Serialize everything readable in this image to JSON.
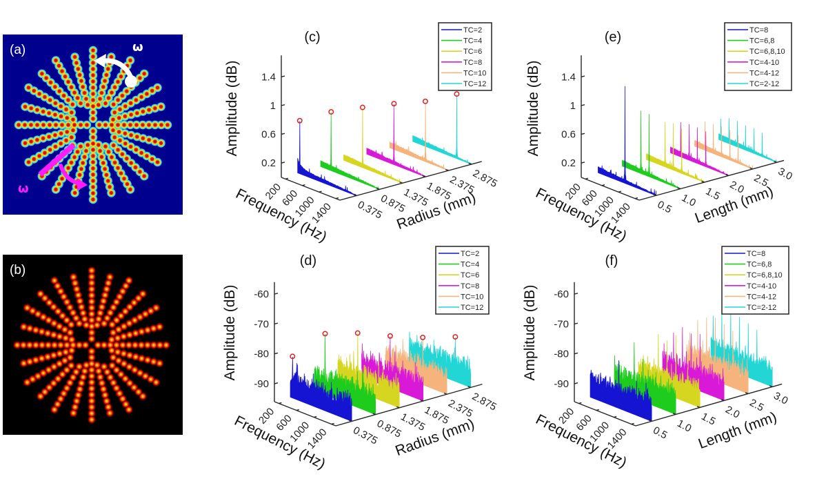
{
  "panel_a": {
    "label": "(a)",
    "omega_top": "ω",
    "omega_bottom": "ω",
    "colors": {
      "background": "#00008f",
      "arrow_top": "#ffffff",
      "arrow_bottom": "#ff1cff"
    }
  },
  "panel_b": {
    "label": "(b)",
    "colors": {
      "background": "#000000"
    }
  },
  "chart_data": [
    {
      "id": "c",
      "label": "(c)",
      "type": "area",
      "style": "3d-waterfall",
      "xlabel": "Frequency (Hz)",
      "ylabel": "Radius (mm)",
      "zlabel": "Amplitude (dB)",
      "xlim": [
        100,
        1500
      ],
      "xticks": [
        200,
        600,
        1000,
        1400
      ],
      "xticklabels": [
        "200",
        "600",
        "1000",
        "1400"
      ],
      "ylim": [
        0.02,
        3.1
      ],
      "yticks": [
        0.375,
        0.875,
        1.375,
        1.875,
        2.375,
        2.875
      ],
      "yticklabels": [
        "0.375",
        "0.875",
        "1.375",
        "1.875",
        "2.375",
        "2.875"
      ],
      "zlim": [
        0,
        1.7
      ],
      "zticks": [
        0.2,
        0.6,
        1,
        1.4
      ],
      "zticklabels": [
        "0.2",
        "0.6",
        "1",
        "1.4"
      ],
      "legend": "top-right",
      "peak_marker": "circle",
      "peak_marker_color": "#e02020",
      "noise_floor": [
        0,
        0.09
      ],
      "series": [
        {
          "name": "TC=2",
          "color": "#1414d2",
          "position": 0.375,
          "peaks": [
            {
              "frequency": 150,
              "amplitude": 0.73
            }
          ]
        },
        {
          "name": "TC=4",
          "color": "#1ecc1e",
          "position": 0.875,
          "peaks": [
            {
              "frequency": 350,
              "amplitude": 0.81
            }
          ]
        },
        {
          "name": "TC=6",
          "color": "#d6d620",
          "position": 1.375,
          "peaks": [
            {
              "frequency": 550,
              "amplitude": 0.83
            }
          ]
        },
        {
          "name": "TC=8",
          "color": "#d81ad8",
          "position": 1.875,
          "peaks": [
            {
              "frequency": 750,
              "amplitude": 0.84
            }
          ]
        },
        {
          "name": "TC=10",
          "color": "#f6b47c",
          "position": 2.375,
          "peaks": [
            {
              "frequency": 950,
              "amplitude": 0.83
            }
          ]
        },
        {
          "name": "TC=12",
          "color": "#22d6d6",
          "position": 2.875,
          "peaks": [
            {
              "frequency": 1150,
              "amplitude": 0.89
            }
          ]
        }
      ]
    },
    {
      "id": "d",
      "label": "(d)",
      "type": "area",
      "style": "3d-waterfall",
      "xlabel": "Frequency (Hz)",
      "ylabel": "Radius (mm)",
      "zlabel": "Amplitude (dB)",
      "xlim": [
        100,
        1500
      ],
      "xticks": [
        200,
        600,
        1000,
        1400
      ],
      "xticklabels": [
        "200",
        "600",
        "1000",
        "1400"
      ],
      "ylim": [
        0.04,
        3.12
      ],
      "yticks": [
        0.375,
        0.875,
        1.375,
        1.875,
        2.375,
        2.875
      ],
      "yticklabels": [
        "0.375",
        "0.875",
        "1.375",
        "1.875",
        "2.375",
        "2.875"
      ],
      "zlim": [
        -96,
        -56
      ],
      "zticks": [
        -90,
        -80,
        -70,
        -60
      ],
      "zticklabels": [
        "-90",
        "-80",
        "-70",
        "-60"
      ],
      "legend": "top-right",
      "peak_marker": "circle",
      "peak_marker_color": "#e02020",
      "noise_floor": [
        -92,
        -86
      ],
      "series": [
        {
          "name": "TC=2",
          "color": "#1414d2",
          "position": 0.375,
          "peaks": [
            {
              "frequency": 150,
              "amplitude": -82.3
            }
          ]
        },
        {
          "name": "TC=4",
          "color": "#1ecc1e",
          "position": 0.875,
          "peaks": [
            {
              "frequency": 350,
              "amplitude": -75.8
            }
          ]
        },
        {
          "name": "TC=6",
          "color": "#d6d620",
          "position": 1.375,
          "peaks": [
            {
              "frequency": 550,
              "amplitude": -76.7
            }
          ]
        },
        {
          "name": "TC=8",
          "color": "#d81ad8",
          "position": 1.875,
          "peaks": [
            {
              "frequency": 750,
              "amplitude": -78.8
            }
          ]
        },
        {
          "name": "TC=10",
          "color": "#f6b47c",
          "position": 2.375,
          "peaks": [
            {
              "frequency": 950,
              "amplitude": -80.4
            }
          ]
        },
        {
          "name": "TC=12",
          "color": "#22d6d6",
          "position": 2.875,
          "peaks": [
            {
              "frequency": 1150,
              "amplitude": -81.3
            }
          ]
        }
      ]
    },
    {
      "id": "e",
      "label": "(e)",
      "type": "area",
      "style": "3d-waterfall",
      "xlabel": "Frequency (Hz)",
      "ylabel": "Length (mm)",
      "zlabel": "Amplitude (dB)",
      "xlim": [
        100,
        1500
      ],
      "xticks": [
        200,
        600,
        1000,
        1400
      ],
      "xticklabels": [
        "200",
        "600",
        "1000",
        "1400"
      ],
      "ylim": [
        0.15,
        3.15
      ],
      "yticks": [
        0.5,
        1.0,
        1.5,
        2.0,
        2.5,
        3.0
      ],
      "yticklabels": [
        "0.5",
        "1.0",
        "1.5",
        "2.0",
        "2.5",
        "3.0"
      ],
      "zlim": [
        0,
        1.7
      ],
      "zticks": [
        0.2,
        0.6,
        1,
        1.4
      ],
      "zticklabels": [
        "0.2",
        "0.6",
        "1",
        "1.4"
      ],
      "legend": "top-right",
      "noise_floor": [
        0,
        0.09
      ],
      "series": [
        {
          "name": "TC=8",
          "color": "#1414d2",
          "position": 0.5,
          "peaks": [
            {
              "frequency": 750,
              "amplitude": 1.35
            }
          ]
        },
        {
          "name": "TC=6,8",
          "color": "#1ecc1e",
          "position": 1.0,
          "peaks": [
            {
              "frequency": 550,
              "amplitude": 0.87
            },
            {
              "frequency": 750,
              "amplitude": 0.87
            }
          ]
        },
        {
          "name": "TC=6,8,10",
          "color": "#d6d620",
          "position": 1.5,
          "peaks": [
            {
              "frequency": 550,
              "amplitude": 0.62
            },
            {
              "frequency": 750,
              "amplitude": 0.65
            },
            {
              "frequency": 950,
              "amplitude": 0.62
            }
          ]
        },
        {
          "name": "TC=4-10",
          "color": "#d81ad8",
          "position": 2.0,
          "peaks": [
            {
              "frequency": 350,
              "amplitude": 0.48
            },
            {
              "frequency": 550,
              "amplitude": 0.5
            },
            {
              "frequency": 750,
              "amplitude": 0.5
            },
            {
              "frequency": 950,
              "amplitude": 0.49
            }
          ]
        },
        {
          "name": "TC=4-12",
          "color": "#f6b47c",
          "position": 2.5,
          "peaks": [
            {
              "frequency": 350,
              "amplitude": 0.4
            },
            {
              "frequency": 550,
              "amplitude": 0.41
            },
            {
              "frequency": 750,
              "amplitude": 0.42
            },
            {
              "frequency": 950,
              "amplitude": 0.42
            },
            {
              "frequency": 1150,
              "amplitude": 0.39
            }
          ]
        },
        {
          "name": "TC=2-12",
          "color": "#22d6d6",
          "position": 3.0,
          "peaks": [
            {
              "frequency": 150,
              "amplitude": 0.3
            },
            {
              "frequency": 350,
              "amplitude": 0.35
            },
            {
              "frequency": 550,
              "amplitude": 0.36
            },
            {
              "frequency": 750,
              "amplitude": 0.34
            },
            {
              "frequency": 950,
              "amplitude": 0.35
            },
            {
              "frequency": 1150,
              "amplitude": 0.33
            }
          ]
        }
      ]
    },
    {
      "id": "f",
      "label": "(f)",
      "type": "area",
      "style": "3d-waterfall",
      "xlabel": "Frequency (Hz)",
      "ylabel": "Length (mm)",
      "zlabel": "Amplitude (dB)",
      "xlim": [
        100,
        1500
      ],
      "xticks": [
        200,
        600,
        1000,
        1400
      ],
      "xticklabels": [
        "200",
        "600",
        "1000",
        "1400"
      ],
      "ylim": [
        0.17,
        3.2
      ],
      "yticks": [
        0.5,
        1.0,
        1.5,
        2.0,
        2.5,
        3.0
      ],
      "yticklabels": [
        "0.5",
        "1.0",
        "1.5",
        "2.0",
        "2.5",
        "3.0"
      ],
      "zlim": [
        -96,
        -56
      ],
      "zticks": [
        -90,
        -80,
        -70,
        -60
      ],
      "zticklabels": [
        "-90",
        "-80",
        "-70",
        "-60"
      ],
      "legend": "top-right",
      "noise_floor": [
        -92,
        -86
      ],
      "series": [
        {
          "name": "TC=8",
          "color": "#1414d2",
          "position": 0.5,
          "peaks": [
            {
              "frequency": 750,
              "amplitude": -80
            }
          ]
        },
        {
          "name": "TC=6,8",
          "color": "#1ecc1e",
          "position": 1.0,
          "peaks": [
            {
              "frequency": 550,
              "amplitude": -77.4
            },
            {
              "frequency": 750,
              "amplitude": -81.8
            }
          ]
        },
        {
          "name": "TC=6,8,10",
          "color": "#d6d620",
          "position": 1.5,
          "peaks": [
            {
              "frequency": 550,
              "amplitude": -77
            },
            {
              "frequency": 750,
              "amplitude": -78
            },
            {
              "frequency": 950,
              "amplitude": -75
            }
          ]
        },
        {
          "name": "TC=4-10",
          "color": "#d81ad8",
          "position": 2.0,
          "peaks": [
            {
              "frequency": 350,
              "amplitude": -80
            },
            {
              "frequency": 550,
              "amplitude": -77
            },
            {
              "frequency": 750,
              "amplitude": -78
            },
            {
              "frequency": 950,
              "amplitude": -77
            }
          ]
        },
        {
          "name": "TC=4-12",
          "color": "#f6b47c",
          "position": 2.5,
          "peaks": [
            {
              "frequency": 350,
              "amplitude": -78
            },
            {
              "frequency": 550,
              "amplitude": -76
            },
            {
              "frequency": 750,
              "amplitude": -75
            },
            {
              "frequency": 950,
              "amplitude": -76
            },
            {
              "frequency": 1150,
              "amplitude": -77
            }
          ]
        },
        {
          "name": "TC=2-12",
          "color": "#22d6d6",
          "position": 3.0,
          "peaks": [
            {
              "frequency": 150,
              "amplitude": -80
            },
            {
              "frequency": 350,
              "amplitude": -76
            },
            {
              "frequency": 550,
              "amplitude": -75
            },
            {
              "frequency": 750,
              "amplitude": -77
            },
            {
              "frequency": 950,
              "amplitude": -78
            },
            {
              "frequency": 1150,
              "amplitude": -79
            }
          ]
        }
      ]
    }
  ]
}
